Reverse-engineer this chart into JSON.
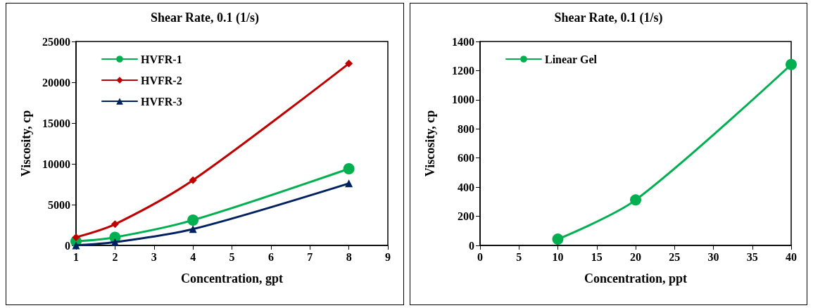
{
  "chart_data": [
    {
      "type": "line",
      "title": "Shear Rate, 0.1 (1/s)",
      "xlabel": "Concentration, gpt",
      "ylabel": "Viscosity, cp",
      "x": [
        1,
        2,
        4,
        8
      ],
      "xlim": [
        1,
        9
      ],
      "xticks": [
        1,
        2,
        3,
        4,
        5,
        6,
        7,
        8,
        9
      ],
      "ylim": [
        0,
        25000
      ],
      "yticks": [
        0,
        5000,
        10000,
        15000,
        20000,
        25000
      ],
      "grid": false,
      "legend": "top left",
      "series": [
        {
          "name": "HVFR-1",
          "color": "#00b050",
          "marker": "circle",
          "values": [
            500,
            1000,
            3100,
            9400
          ]
        },
        {
          "name": "HVFR-2",
          "color": "#c00000",
          "marker": "diamond",
          "values": [
            1000,
            2600,
            8000,
            22300
          ]
        },
        {
          "name": "HVFR-3",
          "color": "#002060",
          "marker": "triangle",
          "values": [
            0,
            400,
            2000,
            7600
          ]
        }
      ]
    },
    {
      "type": "line",
      "title": "Shear Rate, 0.1 (1/s)",
      "xlabel": "Concentration, ppt",
      "ylabel": "Viscosity, cp",
      "x": [
        10,
        20,
        40
      ],
      "xlim": [
        0,
        40
      ],
      "xticks": [
        0,
        5,
        10,
        15,
        20,
        25,
        30,
        35,
        40
      ],
      "ylim": [
        0,
        1400
      ],
      "yticks": [
        0,
        200,
        400,
        600,
        800,
        1000,
        1200,
        1400
      ],
      "grid": false,
      "legend": "top left",
      "series": [
        {
          "name": "Linear Gel",
          "color": "#00b050",
          "marker": "circle",
          "values": [
            43,
            312,
            1242
          ]
        }
      ]
    }
  ]
}
